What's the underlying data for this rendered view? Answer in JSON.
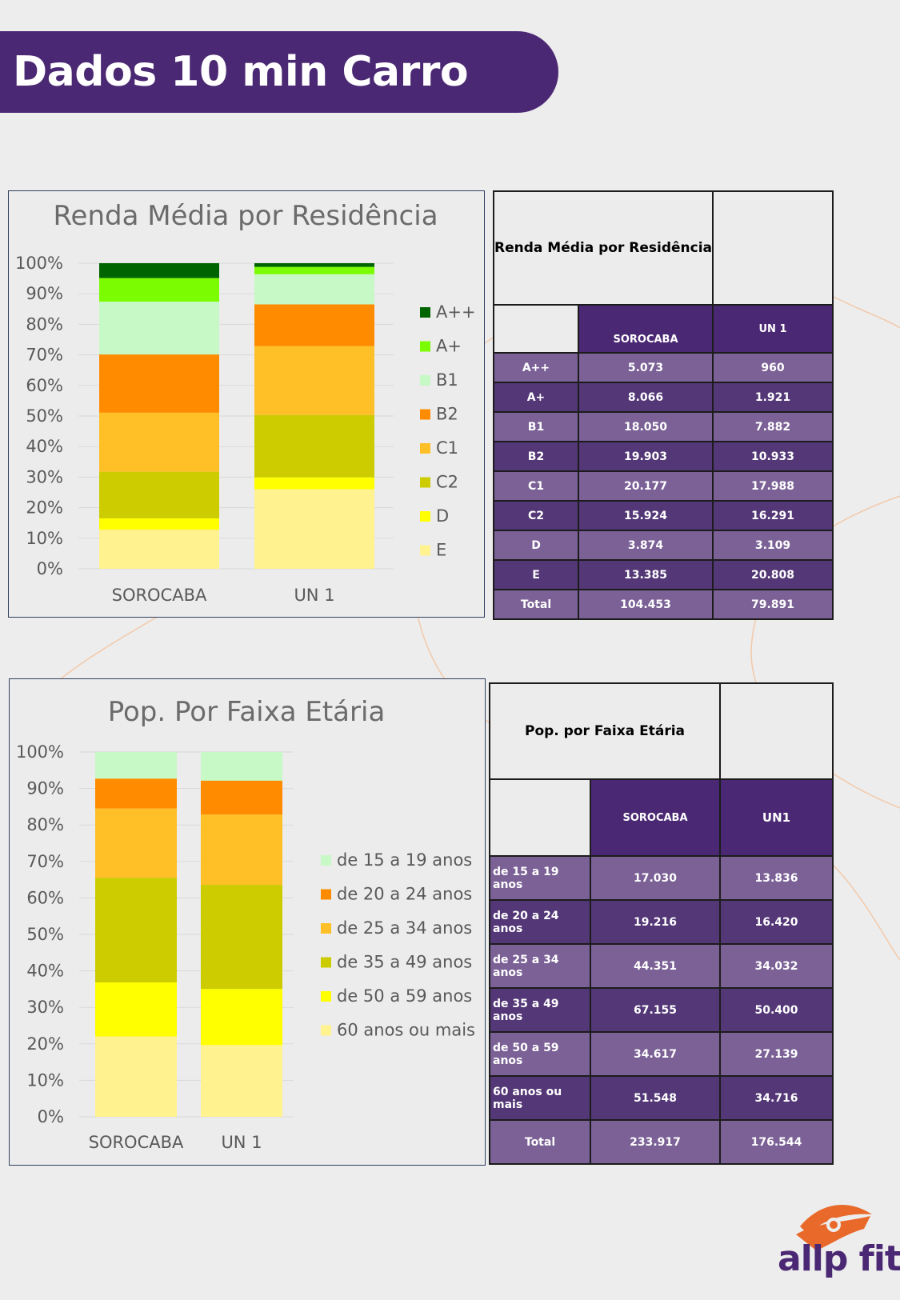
{
  "page_title": "Dados 10 min Carro",
  "colors": {
    "banner": "#4b2873",
    "table_header": "#4b2873",
    "table_row_light": "#7b6196",
    "table_row_dark": "#533776",
    "logo_orange": "#e8692a",
    "logo_purple": "#4b2873"
  },
  "chart_data": [
    {
      "type": "bar",
      "stacked": "100%",
      "title": "Renda Média por Residência",
      "categories": [
        "SOROCABA",
        "UN 1"
      ],
      "series": [
        {
          "name": "E",
          "color": "#fff28f",
          "values": [
            13385,
            20808
          ]
        },
        {
          "name": "D",
          "color": "#ffff00",
          "values": [
            3874,
            3109
          ]
        },
        {
          "name": "C2",
          "color": "#cccc00",
          "values": [
            15924,
            16291
          ]
        },
        {
          "name": "C1",
          "color": "#ffbf26",
          "values": [
            20177,
            17988
          ]
        },
        {
          "name": "B2",
          "color": "#ff8c00",
          "values": [
            19903,
            10933
          ]
        },
        {
          "name": "B1",
          "color": "#c6f9c6",
          "values": [
            18050,
            7882
          ]
        },
        {
          "name": "A+",
          "color": "#7cfc00",
          "values": [
            8066,
            1921
          ]
        },
        {
          "name": "A++",
          "color": "#006400",
          "values": [
            5073,
            960
          ]
        }
      ],
      "ylim": [
        0,
        100
      ],
      "ytick_labels": [
        "0%",
        "10%",
        "20%",
        "30%",
        "40%",
        "50%",
        "60%",
        "70%",
        "80%",
        "90%",
        "100%"
      ],
      "grid": true,
      "legend": "right"
    },
    {
      "type": "bar",
      "stacked": "100%",
      "title": "Pop. Por Faixa Etária",
      "categories": [
        "SOROCABA",
        "UN 1"
      ],
      "series": [
        {
          "name": "60 anos ou mais",
          "color": "#fff28f",
          "values": [
            51548,
            34716
          ]
        },
        {
          "name": "de 50 a 59 anos",
          "color": "#ffff00",
          "values": [
            34617,
            27139
          ]
        },
        {
          "name": "de 35 a 49 anos",
          "color": "#cccc00",
          "values": [
            67155,
            50400
          ]
        },
        {
          "name": "de 25 a 34 anos",
          "color": "#ffbf26",
          "values": [
            44351,
            34032
          ]
        },
        {
          "name": "de 20 a 24 anos",
          "color": "#ff8c00",
          "values": [
            19216,
            16420
          ]
        },
        {
          "name": "de 15 a 19 anos",
          "color": "#c6f9c6",
          "values": [
            17030,
            13836
          ]
        }
      ],
      "ylim": [
        0,
        100
      ],
      "ytick_labels": [
        "0%",
        "10%",
        "20%",
        "30%",
        "40%",
        "50%",
        "60%",
        "70%",
        "80%",
        "90%",
        "100%"
      ],
      "grid": true,
      "legend": "right"
    }
  ],
  "table_renda": {
    "title": "Renda Média por Residência",
    "columns": [
      "SOROCABA",
      "UN 1"
    ],
    "rows": [
      {
        "label": "A++",
        "v1": "5.073",
        "v2": "960"
      },
      {
        "label": "A+",
        "v1": "8.066",
        "v2": "1.921"
      },
      {
        "label": "B1",
        "v1": "18.050",
        "v2": "7.882"
      },
      {
        "label": "B2",
        "v1": "19.903",
        "v2": "10.933"
      },
      {
        "label": "C1",
        "v1": "20.177",
        "v2": "17.988"
      },
      {
        "label": "C2",
        "v1": "15.924",
        "v2": "16.291"
      },
      {
        "label": "D",
        "v1": "3.874",
        "v2": "3.109"
      },
      {
        "label": "E",
        "v1": "13.385",
        "v2": "20.808"
      },
      {
        "label": "Total",
        "v1": "104.453",
        "v2": "79.891"
      }
    ]
  },
  "table_pop": {
    "title": "Pop. por Faixa Etária",
    "columns": [
      "SOROCABA",
      "UN1"
    ],
    "rows": [
      {
        "label": "de 15 a 19 anos",
        "v1": "17.030",
        "v2": "13.836"
      },
      {
        "label": "de 20 a 24 anos",
        "v1": "19.216",
        "v2": "16.420"
      },
      {
        "label": "de 25 a 34 anos",
        "v1": "44.351",
        "v2": "34.032"
      },
      {
        "label": "de 35 a 49 anos",
        "v1": "67.155",
        "v2": "50.400"
      },
      {
        "label": "de 50 a 59 anos",
        "v1": "34.617",
        "v2": "27.139"
      },
      {
        "label": "60 anos ou mais",
        "v1": "51.548",
        "v2": "34.716"
      },
      {
        "label": "Total",
        "v1": "233.917",
        "v2": "176.544"
      }
    ]
  },
  "logo": {
    "text": "allp fit",
    "icon": "allp-fit-eye-icon"
  }
}
